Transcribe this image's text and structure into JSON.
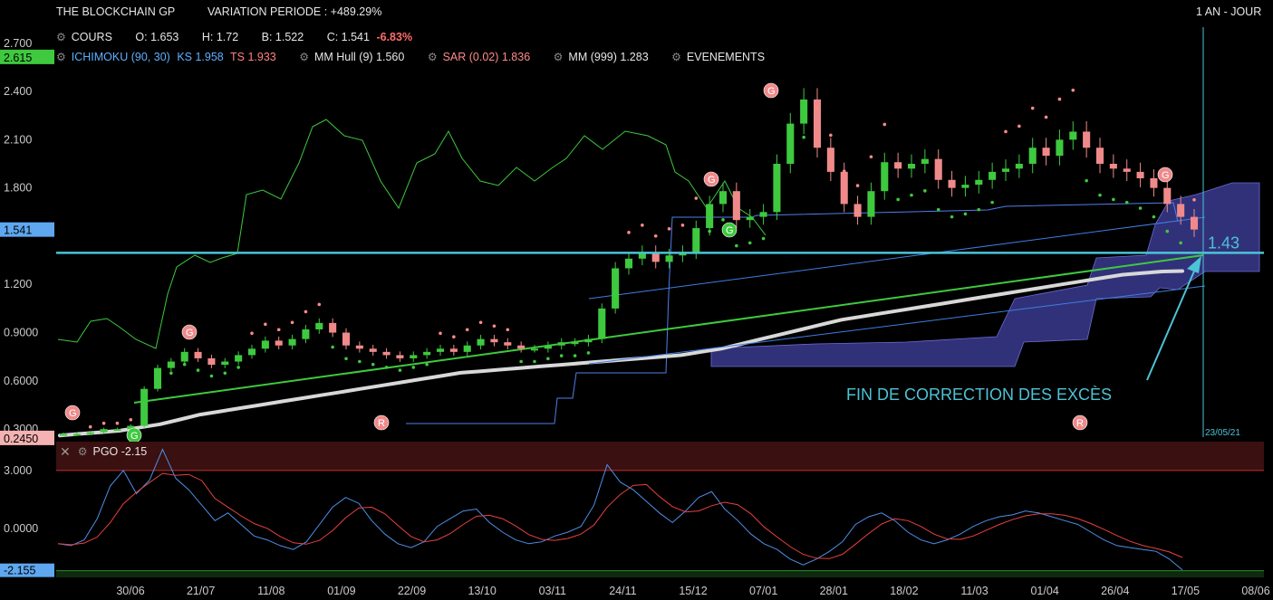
{
  "header": {
    "title": "THE BLOCKCHAIN GP",
    "variation": "VARIATION PERIODE : +489.29%",
    "period": "1 AN - JOUR",
    "cours_label": "COURS",
    "o": "O: 1.653",
    "h": "H: 1.72",
    "b": "B: 1.522",
    "c": "C: 1.541",
    "change": "-6.83%",
    "ichimoku_label": "ICHIMOKU (90, 30)",
    "ks": "KS 1.958",
    "ts": "TS 1.933",
    "hull": "MM Hull (9) 1.560",
    "sar": "SAR (0.02) 1.836",
    "mm999": "MM (999) 1.283",
    "events": "EVENEMENTS"
  },
  "pgo_panel": {
    "label": "PGO -2.15"
  },
  "annotations": {
    "level": "1.43",
    "text": "FIN DE CORRECTION DES EXCÈS",
    "date_marker": "23/05/21"
  },
  "colors": {
    "up": "#3ec93e",
    "down": "#f08a8a",
    "hline": "#4cc3d6",
    "cloud": "#3a3a8e",
    "trend_green": "#3ec93e",
    "channel_blue": "#3d7fe0",
    "mm999": "#d8d8d8",
    "sar": "#ff8a8a",
    "pgo_blue": "#4d8fe8",
    "pgo_red": "#e84040"
  },
  "chart_data": {
    "type": "line",
    "title": "THE BLOCKCHAIN GP",
    "x_ticks": [
      "30/06",
      "21/07",
      "11/08",
      "01/09",
      "22/09",
      "13/10",
      "03/11",
      "24/11",
      "15/12",
      "07/01",
      "28/01",
      "18/02",
      "11/03",
      "01/04",
      "26/04",
      "17/05",
      "08/06"
    ],
    "y_ticks": [
      "0.3000",
      "0.6000",
      "0.9000",
      "1.200",
      "1.800",
      "2.100",
      "2.400",
      "2.700"
    ],
    "price_flags": [
      {
        "label": "2.615",
        "color": "#3ec93e",
        "y": 2.615
      },
      {
        "label": "1.541",
        "color": "#5fa8f0",
        "y": 1.541
      },
      {
        "label": "0.2450",
        "color": "#f4b2b2",
        "y": 0.245
      }
    ],
    "ylim": [
      0.25,
      2.8
    ],
    "horizontal_level": 1.43,
    "close_series": [
      0.27,
      0.27,
      0.28,
      0.3,
      0.3,
      0.32,
      0.55,
      0.68,
      0.72,
      0.78,
      0.74,
      0.7,
      0.72,
      0.76,
      0.8,
      0.85,
      0.82,
      0.86,
      0.92,
      0.96,
      0.9,
      0.82,
      0.8,
      0.78,
      0.76,
      0.74,
      0.76,
      0.78,
      0.8,
      0.78,
      0.82,
      0.86,
      0.84,
      0.82,
      0.8,
      0.8,
      0.82,
      0.84,
      0.84,
      0.86,
      1.05,
      1.3,
      1.36,
      1.4,
      1.34,
      1.38,
      1.4,
      1.55,
      1.7,
      1.78,
      1.6,
      1.62,
      1.65,
      1.95,
      2.2,
      2.35,
      2.05,
      1.9,
      1.7,
      1.62,
      1.78,
      1.96,
      1.92,
      1.95,
      1.98,
      1.85,
      1.8,
      1.82,
      1.85,
      1.9,
      1.92,
      1.95,
      2.05,
      2.0,
      2.1,
      2.15,
      2.05,
      1.95,
      1.92,
      1.9,
      1.86,
      1.8,
      1.7,
      1.62,
      1.541
    ],
    "ma999": [
      0.26,
      0.27,
      0.28,
      0.29,
      0.31,
      0.33,
      0.36,
      0.39,
      0.41,
      0.43,
      0.45,
      0.47,
      0.49,
      0.51,
      0.53,
      0.55,
      0.57,
      0.59,
      0.61,
      0.63,
      0.65,
      0.66,
      0.67,
      0.68,
      0.69,
      0.7,
      0.71,
      0.72,
      0.73,
      0.74,
      0.75,
      0.76,
      0.78,
      0.8,
      0.83,
      0.86,
      0.89,
      0.92,
      0.95,
      0.98,
      1.0,
      1.02,
      1.04,
      1.06,
      1.08,
      1.1,
      1.12,
      1.14,
      1.16,
      1.18,
      1.2,
      1.22,
      1.24,
      1.26,
      1.27,
      1.28,
      1.283
    ],
    "pgo_range": [
      -2.5,
      4.5
    ],
    "pgo_ticks": [
      "3.000",
      "0.0000"
    ],
    "pgo_flag": "-2.155",
    "pgo_series": [
      -0.8,
      -0.9,
      -0.6,
      0.5,
      2.2,
      3.0,
      1.8,
      2.5,
      4.1,
      2.6,
      2.0,
      1.2,
      0.4,
      0.8,
      0.2,
      -0.4,
      -0.6,
      -0.9,
      -1.1,
      -0.7,
      0.2,
      1.1,
      1.6,
      1.3,
      0.4,
      -0.3,
      -0.8,
      -1.0,
      -0.7,
      0.1,
      0.5,
      0.9,
      1.0,
      0.3,
      -0.2,
      -0.6,
      -0.8,
      -0.7,
      -0.4,
      -0.2,
      0.1,
      1.2,
      3.3,
      2.4,
      2.0,
      1.4,
      0.8,
      0.3,
      0.9,
      1.6,
      1.9,
      1.0,
      0.4,
      -0.3,
      -0.8,
      -1.1,
      -1.6,
      -1.9,
      -1.6,
      -1.2,
      -0.7,
      0.2,
      0.6,
      0.8,
      0.4,
      -0.2,
      -0.6,
      -0.8,
      -0.6,
      -0.3,
      0.1,
      0.4,
      0.6,
      0.7,
      0.9,
      0.8,
      0.6,
      0.4,
      0.2,
      -0.2,
      -0.6,
      -0.9,
      -1.0,
      -1.1,
      -1.2,
      -1.6,
      -2.155
    ]
  }
}
